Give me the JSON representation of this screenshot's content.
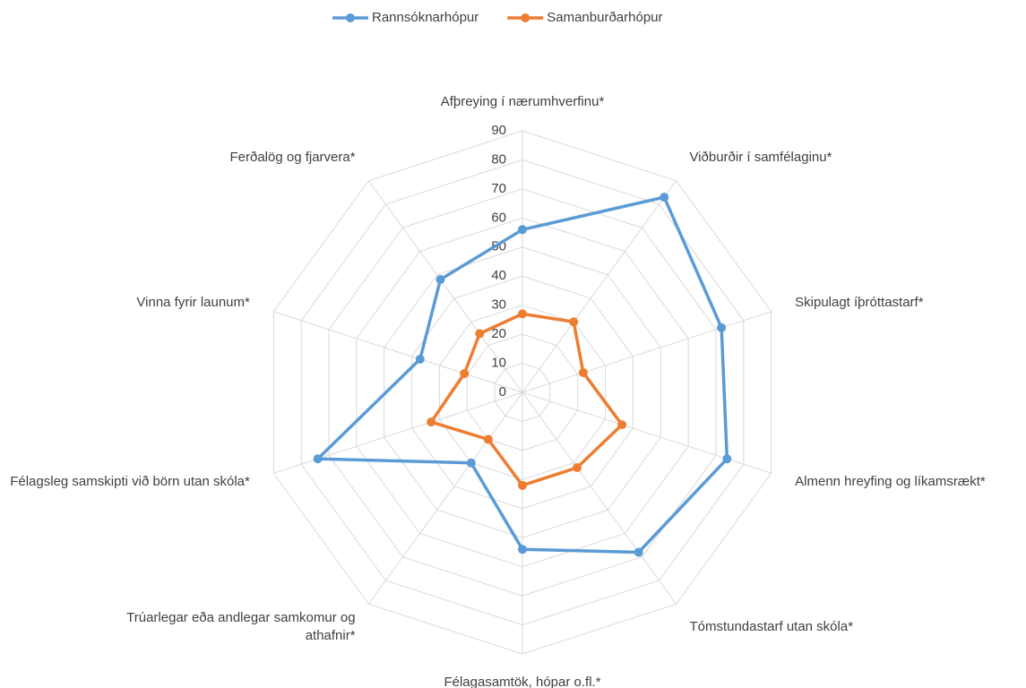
{
  "chart_data": {
    "type": "radar",
    "categories": [
      "Afþreying í nærumhverfinu*",
      "Viðburðir í samfélaginu*",
      "Skipulagt íþróttastarf*",
      "Almenn hreyfing og líkamsrækt*",
      "Tómstundastarf utan skóla*",
      "Félagasamtök, hópar o.fl.*",
      "Trúarlegar eða andlegar samkomur og athafnir*",
      "Félagsleg samskipti við börn utan skóla*",
      "Vinna fyrir launum*",
      "Ferðalög og fjarvera*"
    ],
    "series": [
      {
        "name": "Rannsóknarhópur",
        "color": "#5b9bd5",
        "values": [
          56,
          83,
          72,
          74,
          68,
          54,
          30,
          74,
          37,
          48
        ]
      },
      {
        "name": "Samanburðarhópur",
        "color": "#ed7d31",
        "values": [
          27,
          30,
          22,
          36,
          32,
          32,
          20,
          33,
          21,
          25
        ]
      }
    ],
    "ylim": [
      0,
      90
    ],
    "yticks": [
      0,
      10,
      20,
      30,
      40,
      50,
      60,
      70,
      80,
      90
    ],
    "grid": true,
    "legend": "top"
  }
}
